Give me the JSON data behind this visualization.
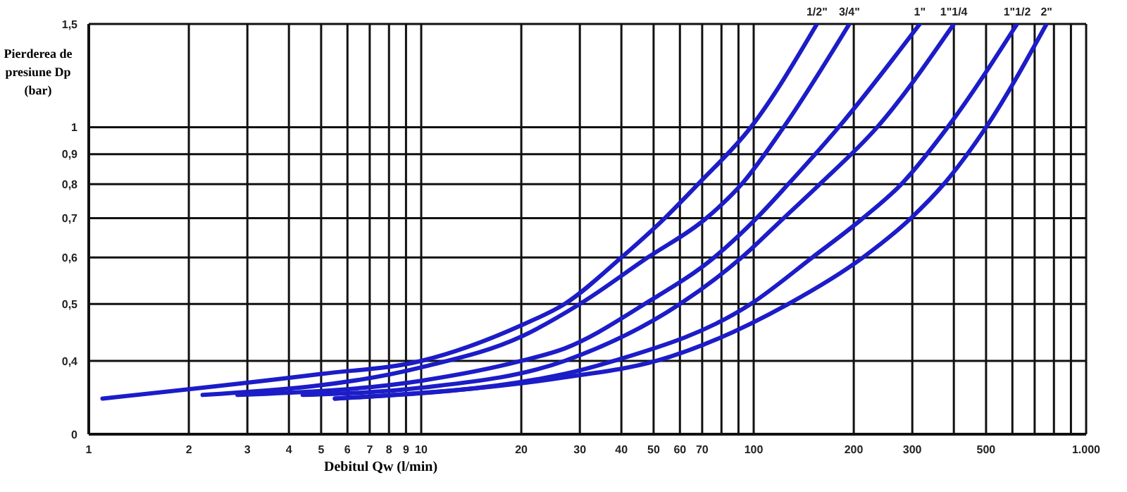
{
  "chart_data": {
    "type": "line",
    "xlabel": "Debitul Qw (l/min)",
    "ylabel": "Pierderea de presiune Dp  (bar)",
    "log": "xy",
    "grid": true,
    "xlim": [
      1,
      1000
    ],
    "xticks": [
      1,
      2,
      3,
      4,
      5,
      6,
      7,
      8,
      9,
      10,
      20,
      30,
      40,
      50,
      60,
      70,
      {
        "value": 80,
        "label": null
      },
      {
        "value": 90,
        "label": null
      },
      100,
      200,
      300,
      {
        "value": 400,
        "label": null
      },
      500,
      {
        "value": 600,
        "label": null
      },
      {
        "value": 700,
        "label": null
      },
      {
        "value": 800,
        "label": null
      },
      {
        "value": 900,
        "label": null
      },
      {
        "value": 1000,
        "label": "1.000"
      }
    ],
    "ylim": [
      0.3,
      1.5
    ],
    "yticks": [
      {
        "value": 0.3,
        "label": "0"
      },
      {
        "value": 0.4,
        "label": "0,4"
      },
      {
        "value": 0.5,
        "label": "0,5"
      },
      {
        "value": 0.6,
        "label": "0,6"
      },
      {
        "value": 0.7,
        "label": "0,7"
      },
      {
        "value": 0.8,
        "label": "0,8"
      },
      {
        "value": 0.9,
        "label": "0,9"
      },
      {
        "value": 1,
        "label": "1"
      },
      {
        "value": 1.5,
        "label": "1,5"
      }
    ],
    "series": [
      {
        "name": "1/2\"",
        "color": "#1c1cc8",
        "x": [
          1.1,
          5,
          10,
          20,
          27,
          40,
          54,
          68,
          98,
          155
        ],
        "values": [
          0.345,
          0.38,
          0.4,
          0.46,
          0.5,
          0.6,
          0.7,
          0.8,
          1.0,
          1.5
        ]
      },
      {
        "name": "3/4\"",
        "color": "#1c1cc8",
        "x": [
          2.2,
          10,
          20,
          30,
          48,
          72,
          92,
          123,
          194
        ],
        "values": [
          0.35,
          0.39,
          0.44,
          0.5,
          0.6,
          0.7,
          0.8,
          1.0,
          1.5
        ]
      },
      {
        "name": "1\"",
        "color": "#1c1cc8",
        "x": [
          2.8,
          10,
          20,
          27,
          47,
          76,
          102,
          127,
          180,
          316
        ],
        "values": [
          0.35,
          0.37,
          0.4,
          0.42,
          0.5,
          0.6,
          0.7,
          0.8,
          1.0,
          1.5
        ]
      },
      {
        "name": "1\"1/4",
        "color": "#1c1cc8",
        "x": [
          4.4,
          10,
          27,
          60,
          92,
          123,
          158,
          235,
          400
        ],
        "values": [
          0.35,
          0.36,
          0.4,
          0.5,
          0.6,
          0.7,
          0.8,
          1.0,
          1.5
        ]
      },
      {
        "name": "1\"1/2",
        "color": "#1c1cc8",
        "x": [
          5.5,
          27,
          38,
          98,
          150,
          213,
          278,
          383,
          620
        ],
        "values": [
          0.345,
          0.38,
          0.4,
          0.5,
          0.6,
          0.7,
          0.8,
          1.0,
          1.5
        ]
      },
      {
        "name": "2\"",
        "color": "#1c1cc8",
        "x": [
          5.5,
          27,
          51,
          127,
          213,
          297,
          373,
          500,
          760
        ],
        "values": [
          0.345,
          0.375,
          0.4,
          0.5,
          0.6,
          0.7,
          0.8,
          1.0,
          1.5
        ]
      }
    ]
  }
}
